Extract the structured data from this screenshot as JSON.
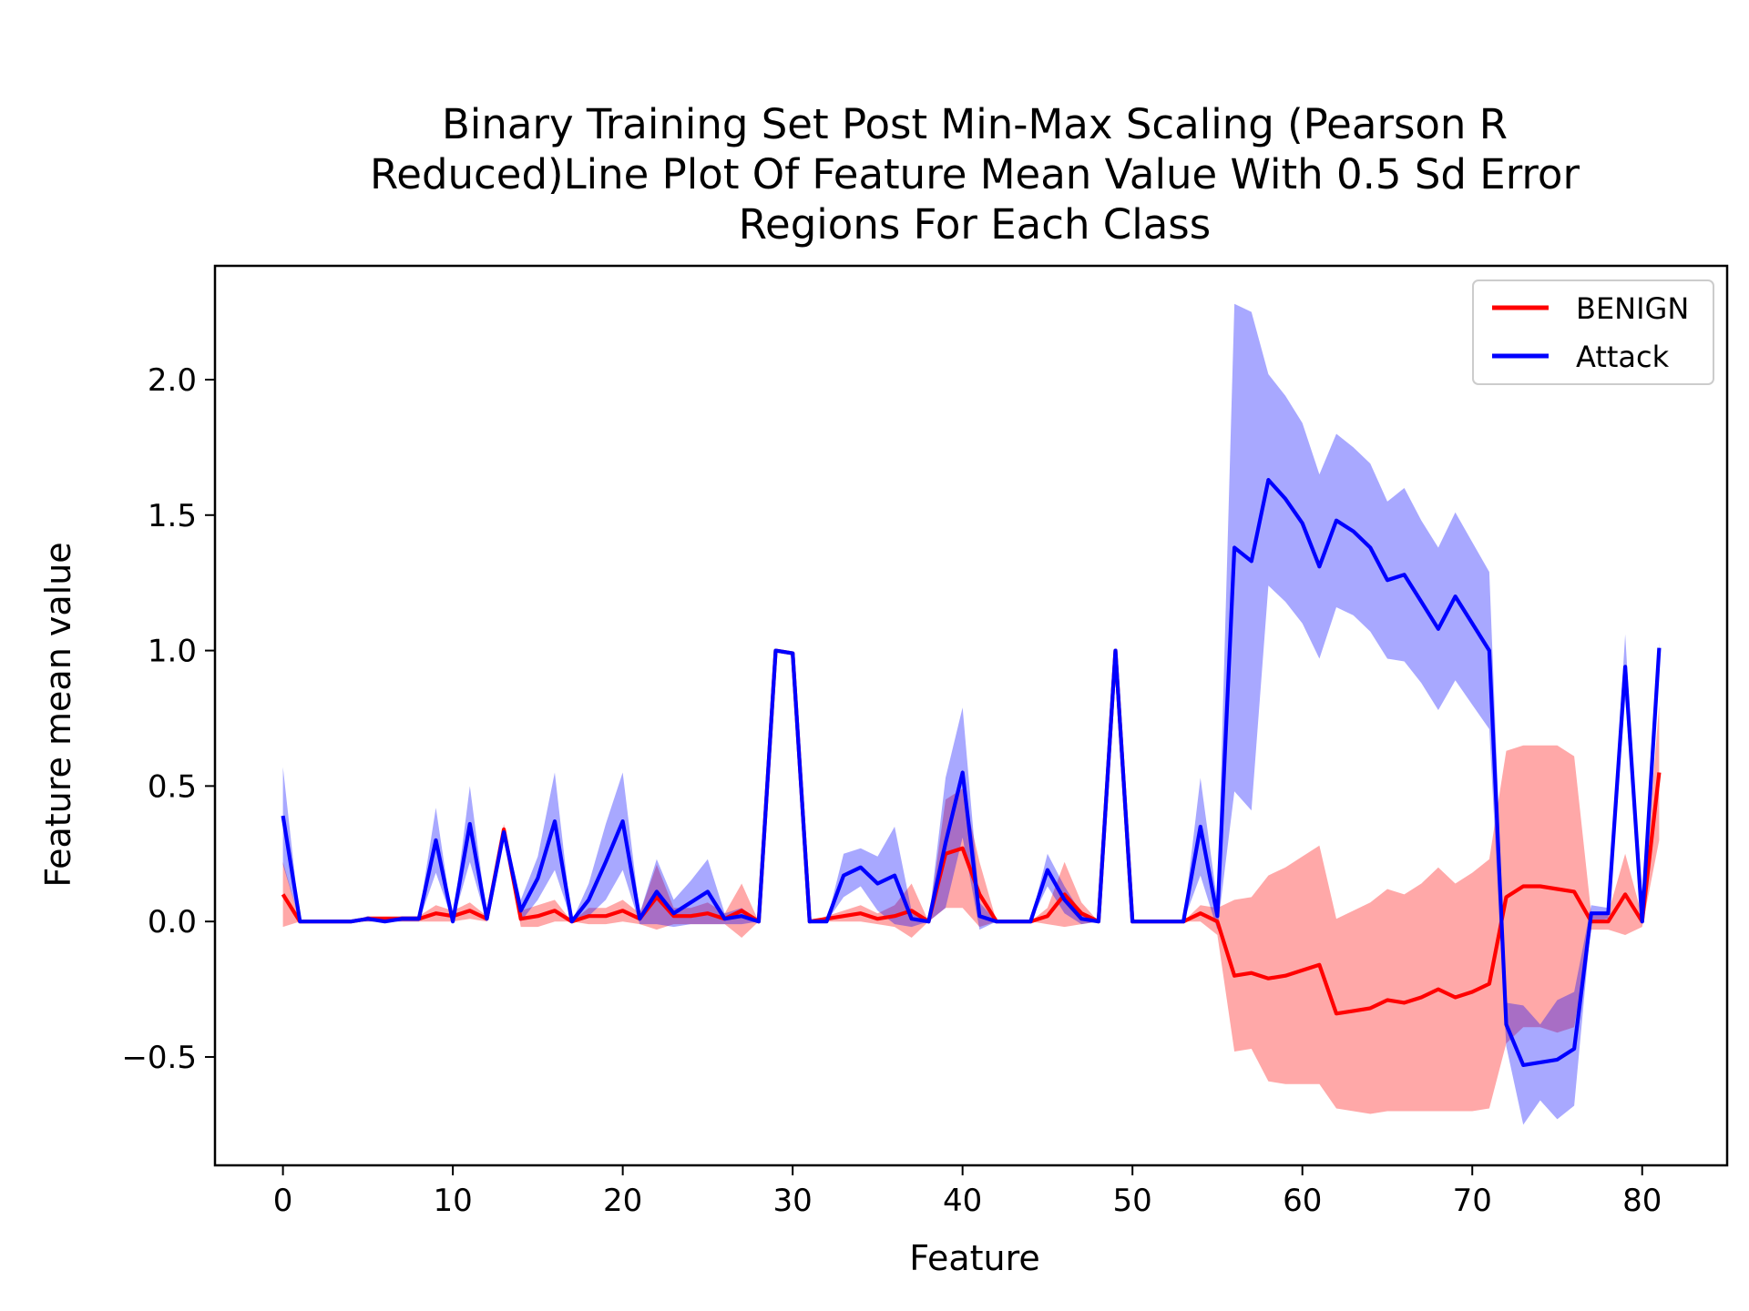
{
  "chart_data": {
    "type": "line",
    "title_lines": [
      "Binary Training Set Post Min-Max Scaling (Pearson R",
      "Reduced)Line Plot Of Feature Mean Value With 0.5 Sd Error",
      "Regions For Each Class"
    ],
    "xlabel": "Feature",
    "ylabel": "Feature mean value",
    "xlim": [
      -4,
      85
    ],
    "ylim": [
      -0.9,
      2.42
    ],
    "x_ticks": [
      0,
      10,
      20,
      30,
      40,
      50,
      60,
      70,
      80
    ],
    "x_tick_labels": [
      "0",
      "10",
      "20",
      "30",
      "40",
      "50",
      "60",
      "70",
      "80"
    ],
    "y_ticks": [
      -0.5,
      0.0,
      0.5,
      1.0,
      1.5,
      2.0
    ],
    "y_tick_labels": [
      "−0.5",
      "0.0",
      "0.5",
      "1.0",
      "1.5",
      "2.0"
    ],
    "grid": false,
    "legend_position": "top-right",
    "error_band": "0.5 sd",
    "series": [
      {
        "name": "BENIGN",
        "color": "#ff0000",
        "band_color": "#ff0000",
        "mean": [
          0.1,
          0.0,
          0.0,
          0.0,
          0.0,
          0.01,
          0.01,
          0.01,
          0.01,
          0.03,
          0.02,
          0.04,
          0.01,
          0.34,
          0.01,
          0.02,
          0.04,
          0.0,
          0.02,
          0.02,
          0.04,
          0.01,
          0.09,
          0.02,
          0.02,
          0.03,
          0.01,
          0.04,
          0.0,
          1.0,
          0.99,
          0.0,
          0.01,
          0.02,
          0.03,
          0.01,
          0.02,
          0.04,
          0.0,
          0.25,
          0.27,
          0.1,
          0.0,
          0.0,
          0.0,
          0.02,
          0.1,
          0.03,
          0.0,
          1.0,
          0.0,
          0.0,
          0.0,
          0.0,
          0.03,
          0.0,
          -0.2,
          -0.19,
          -0.21,
          -0.2,
          -0.18,
          -0.16,
          -0.34,
          -0.33,
          -0.32,
          -0.29,
          -0.3,
          -0.28,
          -0.25,
          -0.28,
          -0.26,
          -0.23,
          0.09,
          0.13,
          0.13,
          0.12,
          0.11,
          0.0,
          0.0,
          0.1,
          0.0,
          0.55
        ],
        "sd_half": [
          0.12,
          0.0,
          0.0,
          0.0,
          0.0,
          0.01,
          0.01,
          0.01,
          0.01,
          0.03,
          0.02,
          0.03,
          0.01,
          0.02,
          0.03,
          0.04,
          0.04,
          0.0,
          0.03,
          0.03,
          0.04,
          0.02,
          0.12,
          0.03,
          0.03,
          0.04,
          0.02,
          0.1,
          0.0,
          0.0,
          0.0,
          0.0,
          0.01,
          0.02,
          0.03,
          0.02,
          0.04,
          0.1,
          0.0,
          0.2,
          0.22,
          0.12,
          0.0,
          0.0,
          0.0,
          0.03,
          0.12,
          0.04,
          0.0,
          0.0,
          0.0,
          0.0,
          0.0,
          0.0,
          0.03,
          0.05,
          0.28,
          0.28,
          0.38,
          0.4,
          0.42,
          0.44,
          0.35,
          0.37,
          0.39,
          0.41,
          0.4,
          0.42,
          0.45,
          0.42,
          0.44,
          0.46,
          0.54,
          0.52,
          0.52,
          0.53,
          0.5,
          0.03,
          0.03,
          0.15,
          0.02,
          0.25
        ]
      },
      {
        "name": "Attack",
        "color": "#0000ff",
        "band_color": "#0000ff",
        "mean": [
          0.39,
          0.0,
          0.0,
          0.0,
          0.0,
          0.01,
          0.0,
          0.01,
          0.01,
          0.3,
          0.0,
          0.36,
          0.01,
          0.33,
          0.04,
          0.16,
          0.37,
          0.0,
          0.08,
          0.22,
          0.37,
          0.01,
          0.11,
          0.03,
          0.07,
          0.11,
          0.01,
          0.02,
          0.0,
          1.0,
          0.99,
          0.0,
          0.0,
          0.17,
          0.2,
          0.14,
          0.17,
          0.01,
          0.0,
          0.29,
          0.55,
          0.02,
          0.0,
          0.0,
          0.0,
          0.19,
          0.08,
          0.01,
          0.0,
          1.0,
          0.0,
          0.0,
          0.0,
          0.0,
          0.35,
          0.02,
          1.38,
          1.33,
          1.63,
          1.56,
          1.47,
          1.31,
          1.48,
          1.44,
          1.38,
          1.26,
          1.28,
          1.18,
          1.08,
          1.2,
          1.1,
          1.0,
          -0.38,
          -0.53,
          -0.52,
          -0.51,
          -0.47,
          0.03,
          0.03,
          0.94,
          0.0,
          1.01
        ],
        "sd_half": [
          0.18,
          0.0,
          0.0,
          0.0,
          0.0,
          0.01,
          0.0,
          0.01,
          0.01,
          0.12,
          0.0,
          0.14,
          0.01,
          0.02,
          0.04,
          0.08,
          0.18,
          0.0,
          0.06,
          0.14,
          0.18,
          0.02,
          0.12,
          0.05,
          0.08,
          0.12,
          0.02,
          0.03,
          0.0,
          0.0,
          0.0,
          0.0,
          0.0,
          0.08,
          0.07,
          0.1,
          0.18,
          0.03,
          0.0,
          0.24,
          0.24,
          0.05,
          0.0,
          0.0,
          0.0,
          0.06,
          0.05,
          0.02,
          0.0,
          0.0,
          0.0,
          0.0,
          0.0,
          0.0,
          0.18,
          0.05,
          0.9,
          0.92,
          0.39,
          0.38,
          0.37,
          0.34,
          0.32,
          0.31,
          0.31,
          0.29,
          0.32,
          0.3,
          0.3,
          0.31,
          0.3,
          0.29,
          0.08,
          0.22,
          0.14,
          0.22,
          0.21,
          0.03,
          0.02,
          0.12,
          0.0,
          0.02
        ]
      }
    ]
  }
}
